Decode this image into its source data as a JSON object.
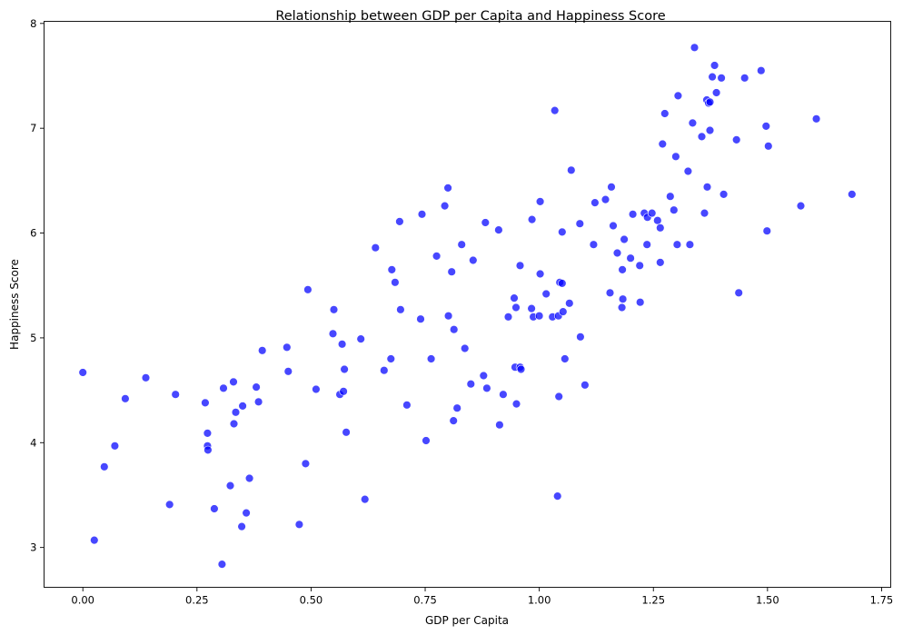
{
  "chart_data": {
    "type": "scatter",
    "title": "Relationship between GDP per Capita and Happiness Score",
    "xlabel": "GDP per Capita",
    "ylabel": "Happiness Score",
    "xlim": [
      -0.085,
      1.77
    ],
    "ylim": [
      2.62,
      8.02
    ],
    "xticks": [
      0.0,
      0.25,
      0.5,
      0.75,
      1.0,
      1.25,
      1.5,
      1.75
    ],
    "xtick_labels": [
      "0.00",
      "0.25",
      "0.50",
      "0.75",
      "1.00",
      "1.25",
      "1.50",
      "1.75"
    ],
    "yticks": [
      3,
      4,
      5,
      6,
      7,
      8
    ],
    "ytick_labels": [
      "3",
      "4",
      "5",
      "6",
      "7",
      "8"
    ],
    "grid": false,
    "series": [
      {
        "color": "#0000ff",
        "opacity": 0.72,
        "points": [
          [
            0.0,
            4.67
          ],
          [
            0.025,
            3.07
          ],
          [
            0.047,
            3.77
          ],
          [
            0.07,
            3.97
          ],
          [
            0.093,
            4.42
          ],
          [
            0.138,
            4.62
          ],
          [
            0.19,
            3.41
          ],
          [
            0.203,
            4.46
          ],
          [
            0.268,
            4.38
          ],
          [
            0.273,
            4.09
          ],
          [
            0.273,
            3.97
          ],
          [
            0.274,
            3.93
          ],
          [
            0.288,
            3.37
          ],
          [
            0.305,
            2.84
          ],
          [
            0.308,
            4.52
          ],
          [
            0.323,
            3.59
          ],
          [
            0.33,
            4.58
          ],
          [
            0.331,
            4.18
          ],
          [
            0.335,
            4.29
          ],
          [
            0.348,
            3.2
          ],
          [
            0.35,
            4.35
          ],
          [
            0.358,
            3.33
          ],
          [
            0.365,
            3.66
          ],
          [
            0.38,
            4.53
          ],
          [
            0.385,
            4.39
          ],
          [
            0.393,
            4.88
          ],
          [
            0.447,
            4.91
          ],
          [
            0.45,
            4.68
          ],
          [
            0.474,
            3.22
          ],
          [
            0.488,
            3.8
          ],
          [
            0.493,
            5.46
          ],
          [
            0.511,
            4.51
          ],
          [
            0.548,
            5.04
          ],
          [
            0.55,
            5.27
          ],
          [
            0.563,
            4.46
          ],
          [
            0.568,
            4.94
          ],
          [
            0.571,
            4.49
          ],
          [
            0.573,
            4.7
          ],
          [
            0.577,
            4.1
          ],
          [
            0.609,
            4.99
          ],
          [
            0.618,
            3.46
          ],
          [
            0.641,
            5.86
          ],
          [
            0.66,
            4.69
          ],
          [
            0.675,
            4.8
          ],
          [
            0.677,
            5.65
          ],
          [
            0.684,
            5.53
          ],
          [
            0.694,
            6.11
          ],
          [
            0.696,
            5.27
          ],
          [
            0.71,
            4.36
          ],
          [
            0.74,
            5.18
          ],
          [
            0.743,
            6.18
          ],
          [
            0.752,
            4.02
          ],
          [
            0.763,
            4.8
          ],
          [
            0.775,
            5.78
          ],
          [
            0.793,
            6.26
          ],
          [
            0.8,
            6.43
          ],
          [
            0.801,
            5.21
          ],
          [
            0.808,
            5.63
          ],
          [
            0.812,
            4.21
          ],
          [
            0.813,
            5.08
          ],
          [
            0.82,
            4.33
          ],
          [
            0.83,
            5.89
          ],
          [
            0.837,
            4.9
          ],
          [
            0.85,
            4.56
          ],
          [
            0.855,
            5.74
          ],
          [
            0.878,
            4.64
          ],
          [
            0.882,
            6.1
          ],
          [
            0.885,
            4.52
          ],
          [
            0.911,
            6.03
          ],
          [
            0.913,
            4.17
          ],
          [
            0.921,
            4.46
          ],
          [
            0.932,
            5.2
          ],
          [
            0.945,
            5.38
          ],
          [
            0.947,
            4.72
          ],
          [
            0.949,
            5.29
          ],
          [
            0.95,
            4.37
          ],
          [
            0.958,
            5.69
          ],
          [
            0.958,
            4.72
          ],
          [
            0.96,
            4.7
          ],
          [
            0.983,
            5.28
          ],
          [
            0.984,
            6.13
          ],
          [
            0.987,
            5.2
          ],
          [
            1.0,
            5.21
          ],
          [
            1.002,
            5.61
          ],
          [
            1.002,
            6.3
          ],
          [
            1.015,
            5.42
          ],
          [
            1.029,
            5.2
          ],
          [
            1.034,
            7.17
          ],
          [
            1.04,
            3.49
          ],
          [
            1.042,
            5.21
          ],
          [
            1.043,
            4.44
          ],
          [
            1.045,
            5.53
          ],
          [
            1.05,
            6.01
          ],
          [
            1.05,
            5.52
          ],
          [
            1.052,
            5.25
          ],
          [
            1.056,
            4.8
          ],
          [
            1.066,
            5.33
          ],
          [
            1.07,
            6.6
          ],
          [
            1.089,
            6.09
          ],
          [
            1.09,
            5.01
          ],
          [
            1.1,
            4.55
          ],
          [
            1.119,
            5.89
          ],
          [
            1.122,
            6.29
          ],
          [
            1.145,
            6.32
          ],
          [
            1.155,
            5.43
          ],
          [
            1.158,
            6.44
          ],
          [
            1.162,
            6.07
          ],
          [
            1.171,
            5.81
          ],
          [
            1.181,
            5.29
          ],
          [
            1.182,
            5.65
          ],
          [
            1.183,
            5.37
          ],
          [
            1.186,
            5.94
          ],
          [
            1.2,
            5.76
          ],
          [
            1.205,
            6.18
          ],
          [
            1.22,
            5.69
          ],
          [
            1.221,
            5.34
          ],
          [
            1.23,
            6.19
          ],
          [
            1.236,
            5.89
          ],
          [
            1.237,
            6.15
          ],
          [
            1.247,
            6.19
          ],
          [
            1.259,
            6.12
          ],
          [
            1.265,
            5.72
          ],
          [
            1.265,
            6.05
          ],
          [
            1.27,
            6.85
          ],
          [
            1.275,
            7.14
          ],
          [
            1.287,
            6.35
          ],
          [
            1.295,
            6.22
          ],
          [
            1.299,
            6.73
          ],
          [
            1.302,
            5.89
          ],
          [
            1.304,
            7.31
          ],
          [
            1.326,
            6.59
          ],
          [
            1.33,
            5.89
          ],
          [
            1.336,
            7.05
          ],
          [
            1.34,
            7.77
          ],
          [
            1.356,
            6.92
          ],
          [
            1.362,
            6.19
          ],
          [
            1.367,
            7.27
          ],
          [
            1.368,
            6.44
          ],
          [
            1.371,
            7.24
          ],
          [
            1.374,
            7.25
          ],
          [
            1.374,
            6.98
          ],
          [
            1.379,
            7.49
          ],
          [
            1.384,
            7.6
          ],
          [
            1.388,
            7.34
          ],
          [
            1.399,
            7.48
          ],
          [
            1.404,
            6.37
          ],
          [
            1.432,
            6.89
          ],
          [
            1.437,
            5.43
          ],
          [
            1.45,
            7.48
          ],
          [
            1.486,
            7.55
          ],
          [
            1.497,
            7.02
          ],
          [
            1.499,
            6.02
          ],
          [
            1.502,
            6.83
          ],
          [
            1.573,
            6.26
          ],
          [
            1.607,
            7.09
          ],
          [
            1.685,
            6.37
          ]
        ]
      }
    ]
  }
}
